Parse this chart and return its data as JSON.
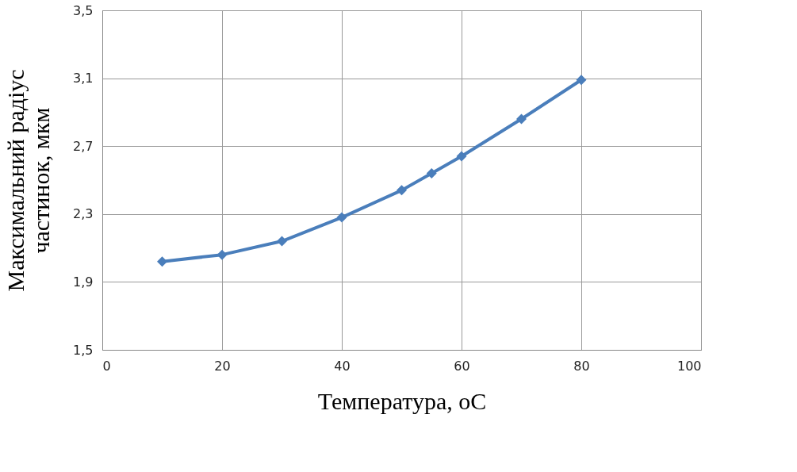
{
  "chart_data": {
    "type": "line",
    "xlabel": "Температура, оС",
    "ylabel": "Максимальний  радіус\nчастинок,  мкм",
    "x": [
      10,
      20,
      30,
      40,
      50,
      55,
      60,
      70,
      80
    ],
    "series": [
      {
        "color": "#4a7ebb",
        "values": [
          2.02,
          2.06,
          2.14,
          2.28,
          2.44,
          2.54,
          2.64,
          2.86,
          3.09
        ]
      }
    ],
    "xlim": [
      0,
      100
    ],
    "xticks": [
      0,
      20,
      40,
      60,
      80,
      100
    ],
    "ylim": [
      1.5,
      3.5
    ],
    "yticks": [
      {
        "value": 1.5,
        "label": "1,5"
      },
      {
        "value": 1.9,
        "label": "1,9"
      },
      {
        "value": 2.3,
        "label": "2,3"
      },
      {
        "value": 2.7,
        "label": "2,7"
      },
      {
        "value": 3.1,
        "label": "3,1"
      },
      {
        "value": 3.5,
        "label": "3,5"
      }
    ],
    "grid": true,
    "marker": "diamond",
    "line_style": "solid"
  }
}
